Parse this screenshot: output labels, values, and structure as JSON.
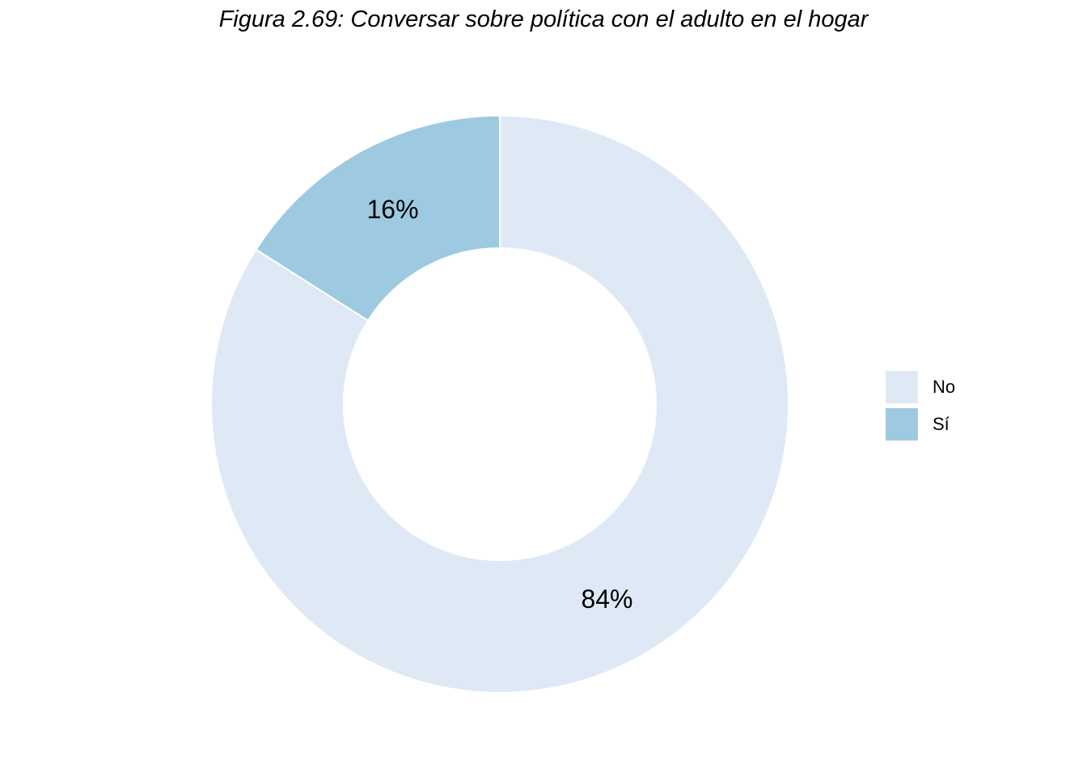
{
  "chart_data": {
    "type": "pie",
    "subtype": "donut",
    "title": "Figura 2.69: Conversar sobre política con el adulto en el hogar",
    "categories": [
      "No",
      "Sí"
    ],
    "values": [
      84,
      16
    ],
    "value_labels": [
      "84%",
      "16%"
    ],
    "colors": [
      "#dee9f5",
      "#9ecae1"
    ],
    "legend": {
      "placement": "right",
      "entries": [
        "No",
        "Sí"
      ]
    },
    "grid": false
  }
}
